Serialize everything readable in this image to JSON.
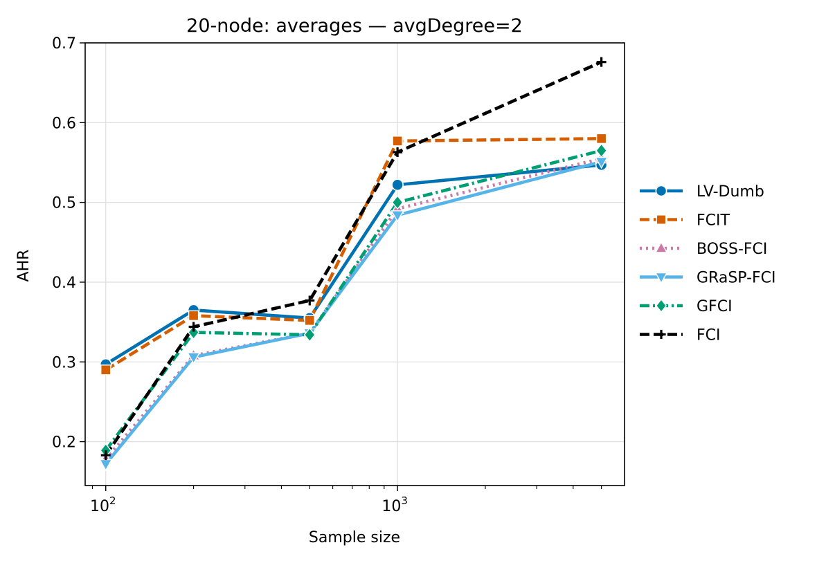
{
  "chart_data": {
    "type": "line",
    "title": "20-node: averages — avgDegree=2",
    "xlabel": "Sample size",
    "ylabel": "AHR",
    "xscale": "log",
    "x": [
      100,
      200,
      500,
      1000,
      5000
    ],
    "xlim": [
      85,
      6000
    ],
    "ylim": [
      0.145,
      0.7
    ],
    "yticks": [
      0.2,
      0.3,
      0.4,
      0.5,
      0.6,
      0.7
    ],
    "ytick_labels": [
      "0.2",
      "0.3",
      "0.4",
      "0.5",
      "0.6",
      "0.7"
    ],
    "xticks": [
      {
        "value": 100,
        "base": "10",
        "exp": "2"
      },
      {
        "value": 1000,
        "base": "10",
        "exp": "3"
      }
    ],
    "grid": true,
    "legend_position": "right, outside plot",
    "series": [
      {
        "name": "LV-Dumb",
        "color": "#0072b2",
        "dash": "solid",
        "marker": "circle",
        "values": [
          0.297,
          0.365,
          0.355,
          0.522,
          0.547
        ]
      },
      {
        "name": "FCIT",
        "color": "#d55e00",
        "dash": "dashed",
        "marker": "square",
        "values": [
          0.29,
          0.358,
          0.352,
          0.577,
          0.58
        ]
      },
      {
        "name": "BOSS-FCI",
        "color": "#cc79a7",
        "dash": "dotted",
        "marker": "triangle-up",
        "values": [
          0.178,
          0.308,
          0.336,
          0.492,
          0.555
        ]
      },
      {
        "name": "GRaSP-FCI",
        "color": "#56b4e9",
        "dash": "solid",
        "marker": "triangle-down",
        "values": [
          0.172,
          0.306,
          0.336,
          0.484,
          0.551
        ]
      },
      {
        "name": "GFCI",
        "color": "#009e73",
        "dash": "dashdot",
        "marker": "diamond",
        "values": [
          0.189,
          0.337,
          0.334,
          0.5,
          0.565
        ]
      },
      {
        "name": "FCI",
        "color": "#000000",
        "dash": "dashed",
        "marker": "plus",
        "values": [
          0.183,
          0.344,
          0.377,
          0.563,
          0.676
        ]
      }
    ]
  }
}
